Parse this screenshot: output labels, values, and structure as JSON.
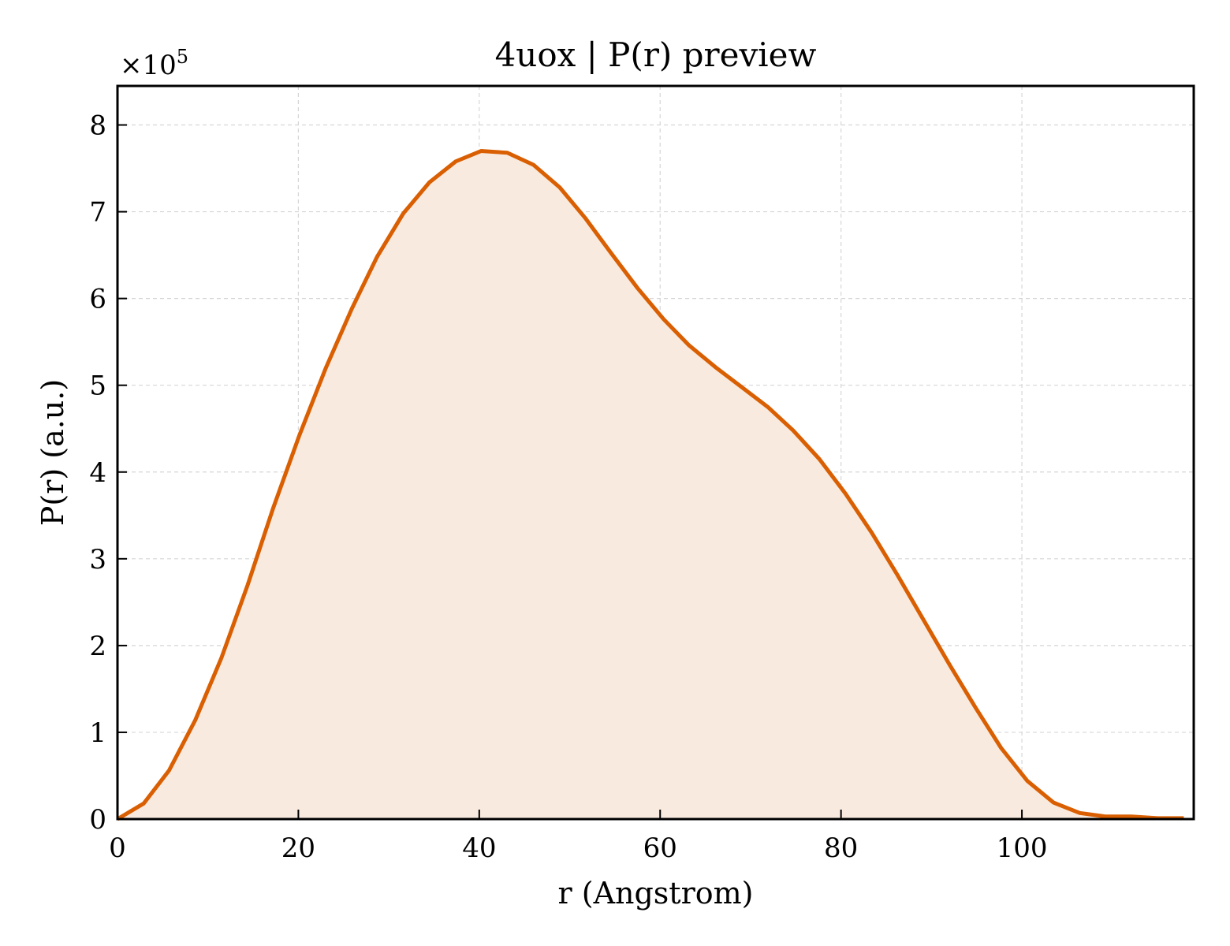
{
  "chart_data": {
    "type": "area",
    "title": "4uox | P(r) preview",
    "xlabel": "r (Angstrom)",
    "ylabel": "P(r) (a.u.)",
    "y_multiplier_label": "×10",
    "y_multiplier_exponent": "5",
    "xlim": [
      0,
      119
    ],
    "ylim": [
      0,
      8.45
    ],
    "y_scale_factor": 100000,
    "x_ticks": [
      0,
      20,
      40,
      60,
      80,
      100
    ],
    "y_ticks": [
      0,
      1,
      2,
      3,
      4,
      5,
      6,
      7,
      8
    ],
    "grid": true,
    "legend": "none",
    "colors": {
      "line": "#d95f02",
      "fill": "#f8eadf",
      "grid": "#d6d6d6"
    },
    "series": [
      {
        "x": [
          0,
          2.9,
          5.7,
          8.6,
          11.5,
          14.4,
          17.2,
          20.1,
          23.0,
          25.9,
          28.7,
          31.6,
          34.5,
          37.4,
          40.2,
          43.1,
          46.0,
          48.9,
          51.7,
          54.6,
          57.5,
          60.4,
          63.2,
          66.1,
          69.0,
          71.9,
          74.7,
          77.6,
          80.5,
          83.4,
          86.2,
          89.1,
          92.0,
          94.9,
          97.7,
          100.6,
          103.5,
          106.4,
          109.2,
          112.1,
          115.0,
          117.9
        ],
        "y": [
          0.0,
          0.18,
          0.56,
          1.14,
          1.86,
          2.7,
          3.58,
          4.42,
          5.19,
          5.88,
          6.48,
          6.98,
          7.34,
          7.58,
          7.7,
          7.68,
          7.54,
          7.28,
          6.93,
          6.52,
          6.12,
          5.76,
          5.46,
          5.21,
          4.98,
          4.75,
          4.48,
          4.15,
          3.75,
          3.3,
          2.82,
          2.3,
          1.78,
          1.28,
          0.82,
          0.44,
          0.19,
          0.07,
          0.03,
          0.03,
          0.01,
          0.01
        ]
      }
    ]
  }
}
